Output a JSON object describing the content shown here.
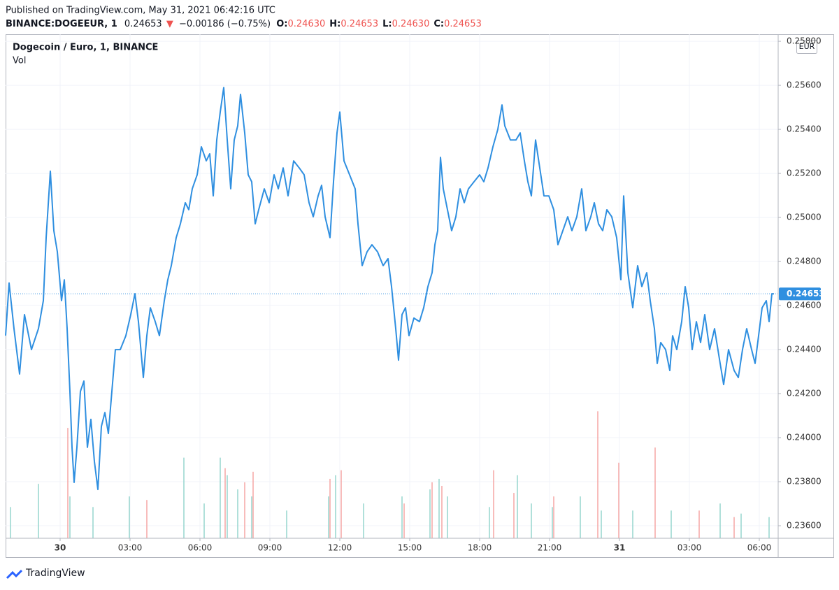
{
  "header": {
    "published": "Published on TradingView.com, May 31, 2021 06:42:16 UTC",
    "symbol": "BINANCE:DOGEEUR, 1",
    "last": "0.24653",
    "arrow": "▼",
    "change": "−0.00186 (−0.75%)",
    "ohlc": [
      {
        "label": "O:",
        "value": "0.24630"
      },
      {
        "label": "H:",
        "value": "0.24653"
      },
      {
        "label": "L:",
        "value": "0.24630"
      },
      {
        "label": "C:",
        "value": "0.24653"
      }
    ]
  },
  "chart_data": {
    "type": "line",
    "title": "Dogecoin / Euro, 1, BINANCE",
    "volume_label": "Vol",
    "currency": "EUR",
    "last_value": 0.24653,
    "grid": true,
    "xlim": [
      -2.34,
      30.81
    ],
    "xticks": [
      {
        "value": 0,
        "label": "30"
      },
      {
        "value": 3,
        "label": "03:00"
      },
      {
        "value": 6,
        "label": "06:00"
      },
      {
        "value": 9,
        "label": "09:00"
      },
      {
        "value": 12,
        "label": "12:00"
      },
      {
        "value": 15,
        "label": "15:00"
      },
      {
        "value": 18,
        "label": "18:00"
      },
      {
        "value": 21,
        "label": "21:00"
      },
      {
        "value": 24,
        "label": "31"
      },
      {
        "value": 27,
        "label": "03:00"
      },
      {
        "value": 30,
        "label": "06:00"
      }
    ],
    "ylim": [
      0.23543,
      0.25832
    ],
    "yticks": [
      {
        "value": 0.236,
        "label": "0.23600"
      },
      {
        "value": 0.238,
        "label": "0.23800"
      },
      {
        "value": 0.24,
        "label": "0.24000"
      },
      {
        "value": 0.242,
        "label": "0.24200"
      },
      {
        "value": 0.244,
        "label": "0.24400"
      },
      {
        "value": 0.246,
        "label": "0.24600"
      },
      {
        "value": 0.248,
        "label": "0.24800"
      },
      {
        "value": 0.25,
        "label": "0.25000"
      },
      {
        "value": 0.252,
        "label": "0.25200"
      },
      {
        "value": 0.254,
        "label": "0.25400"
      },
      {
        "value": 0.256,
        "label": "0.25600"
      },
      {
        "value": 0.258,
        "label": "0.25800"
      }
    ],
    "y2lim": [
      0,
      100
    ],
    "series": [
      {
        "type": "line",
        "color": "#2f8fe0",
        "x": [
          -2.34,
          -2.19,
          -1.98,
          -1.74,
          -1.53,
          -1.23,
          -0.93,
          -0.72,
          -0.6,
          -0.42,
          -0.27,
          -0.12,
          0.06,
          0.18,
          0.3,
          0.42,
          0.51,
          0.6,
          0.72,
          0.87,
          1.02,
          1.17,
          1.32,
          1.47,
          1.62,
          1.77,
          1.92,
          2.07,
          2.22,
          2.37,
          2.58,
          2.82,
          3.03,
          3.21,
          3.36,
          3.57,
          3.72,
          3.87,
          4.08,
          4.26,
          4.47,
          4.62,
          4.77,
          4.98,
          5.16,
          5.37,
          5.52,
          5.67,
          5.88,
          6.06,
          6.27,
          6.42,
          6.57,
          6.72,
          6.87,
          7.02,
          7.17,
          7.32,
          7.47,
          7.62,
          7.74,
          7.92,
          8.07,
          8.22,
          8.37,
          8.52,
          8.76,
          8.97,
          9.18,
          9.36,
          9.57,
          9.78,
          10.02,
          10.26,
          10.47,
          10.68,
          10.86,
          11.07,
          11.22,
          11.37,
          11.58,
          11.73,
          11.88,
          12.0,
          12.18,
          12.42,
          12.66,
          12.78,
          12.96,
          13.17,
          13.38,
          13.62,
          13.86,
          14.07,
          14.22,
          14.4,
          14.52,
          14.67,
          14.82,
          14.97,
          15.18,
          15.42,
          15.6,
          15.78,
          15.96,
          16.08,
          16.2,
          16.32,
          16.44,
          16.62,
          16.8,
          16.98,
          17.16,
          17.34,
          17.52,
          17.76,
          18.0,
          18.18,
          18.36,
          18.57,
          18.78,
          18.96,
          19.08,
          19.32,
          19.56,
          19.74,
          19.92,
          20.07,
          20.22,
          20.4,
          20.58,
          20.76,
          20.97,
          21.18,
          21.36,
          21.57,
          21.78,
          21.96,
          22.17,
          22.38,
          22.56,
          22.77,
          22.92,
          23.1,
          23.28,
          23.46,
          23.67,
          23.88,
          24.06,
          24.18,
          24.36,
          24.57,
          24.78,
          24.96,
          25.17,
          25.32,
          25.5,
          25.62,
          25.77,
          25.98,
          26.16,
          26.28,
          26.46,
          26.67,
          26.82,
          26.97,
          27.12,
          27.3,
          27.48,
          27.66,
          27.87,
          28.08,
          28.32,
          28.47,
          28.68,
          28.92,
          29.1,
          29.28,
          29.46,
          29.67,
          29.82,
          29.97,
          30.12,
          30.3,
          30.42,
          30.54,
          30.63
        ],
        "values": [
          0.24463,
          0.24702,
          0.24495,
          0.24289,
          0.24559,
          0.244,
          0.24495,
          0.24622,
          0.24908,
          0.2521,
          0.2494,
          0.24844,
          0.24622,
          0.24717,
          0.24495,
          0.2421,
          0.23956,
          0.23797,
          0.23956,
          0.2421,
          0.24257,
          0.23956,
          0.24083,
          0.23892,
          0.23765,
          0.24051,
          0.24114,
          0.24019,
          0.2421,
          0.244,
          0.244,
          0.24463,
          0.24559,
          0.24654,
          0.24527,
          0.24273,
          0.24463,
          0.2459,
          0.24527,
          0.24463,
          0.24622,
          0.24717,
          0.24781,
          0.24908,
          0.24971,
          0.25067,
          0.25035,
          0.2513,
          0.25194,
          0.25321,
          0.25257,
          0.25289,
          0.25098,
          0.25352,
          0.25479,
          0.2559,
          0.25352,
          0.2513,
          0.25352,
          0.25416,
          0.25559,
          0.25384,
          0.25194,
          0.25162,
          0.24971,
          0.25035,
          0.2513,
          0.25067,
          0.25194,
          0.2513,
          0.25225,
          0.25098,
          0.25257,
          0.25225,
          0.25194,
          0.25067,
          0.25003,
          0.25098,
          0.25146,
          0.25003,
          0.24908,
          0.25162,
          0.25384,
          0.25479,
          0.25257,
          0.25194,
          0.2513,
          0.24971,
          0.24781,
          0.24844,
          0.24876,
          0.24844,
          0.24781,
          0.24813,
          0.24686,
          0.24495,
          0.24352,
          0.24559,
          0.2459,
          0.24463,
          0.24543,
          0.24527,
          0.2459,
          0.24686,
          0.24749,
          0.24876,
          0.2494,
          0.25273,
          0.2513,
          0.25035,
          0.2494,
          0.25003,
          0.2513,
          0.25067,
          0.2513,
          0.25162,
          0.25194,
          0.25162,
          0.25225,
          0.25321,
          0.254,
          0.25511,
          0.25416,
          0.25352,
          0.25352,
          0.25384,
          0.25257,
          0.25162,
          0.25098,
          0.25352,
          0.25225,
          0.25098,
          0.25098,
          0.25035,
          0.24876,
          0.2494,
          0.25003,
          0.2494,
          0.25003,
          0.2513,
          0.2494,
          0.25003,
          0.25067,
          0.24971,
          0.2494,
          0.25035,
          0.25003,
          0.24908,
          0.24717,
          0.25098,
          0.24749,
          0.2459,
          0.24781,
          0.24686,
          0.24749,
          0.24622,
          0.24495,
          0.24337,
          0.24432,
          0.244,
          0.24305,
          0.24463,
          0.244,
          0.24527,
          0.24686,
          0.2459,
          0.244,
          0.24527,
          0.24432,
          0.24559,
          0.244,
          0.24495,
          0.24337,
          0.24241,
          0.244,
          0.24305,
          0.24273,
          0.244,
          0.24495,
          0.244,
          0.24337,
          0.24463,
          0.2459,
          0.24622,
          0.24527,
          0.24654,
          0.24653
        ]
      },
      {
        "type": "bar",
        "axis": "y2",
        "color": "#8fd3cb",
        "x": [
          -2.13,
          -0.93,
          0.42,
          1.41,
          2.97,
          5.31,
          6.18,
          6.87,
          7.17,
          7.62,
          8.22,
          9.72,
          11.52,
          11.82,
          13.02,
          14.67,
          15.87,
          16.26,
          16.62,
          18.42,
          19.62,
          20.22,
          21.12,
          22.32,
          23.22,
          24.57,
          26.22,
          28.32,
          29.22,
          30.42
        ],
        "values": [
          6.2,
          10.8,
          8.3,
          6.2,
          8.3,
          16.0,
          6.9,
          16.0,
          12.5,
          9.7,
          8.3,
          5.5,
          8.3,
          12.5,
          6.9,
          8.3,
          9.7,
          11.8,
          8.3,
          6.2,
          12.5,
          6.9,
          6.2,
          8.3,
          5.5,
          5.5,
          5.5,
          6.9,
          4.9,
          4.2
        ]
      },
      {
        "type": "bar",
        "axis": "y2",
        "color": "#f4a09e",
        "x": [
          0.33,
          3.72,
          7.08,
          8.28,
          7.92,
          11.58,
          12.06,
          14.76,
          15.96,
          16.38,
          18.6,
          19.47,
          21.18,
          23.07,
          23.97,
          25.53,
          27.42,
          28.92
        ],
        "values": [
          21.9,
          7.6,
          13.9,
          13.2,
          11.1,
          11.8,
          13.5,
          6.9,
          11.1,
          10.4,
          13.5,
          9.0,
          8.3,
          25.2,
          15.0,
          18.0,
          5.5,
          4.2
        ]
      }
    ]
  },
  "footer": "TradingView"
}
